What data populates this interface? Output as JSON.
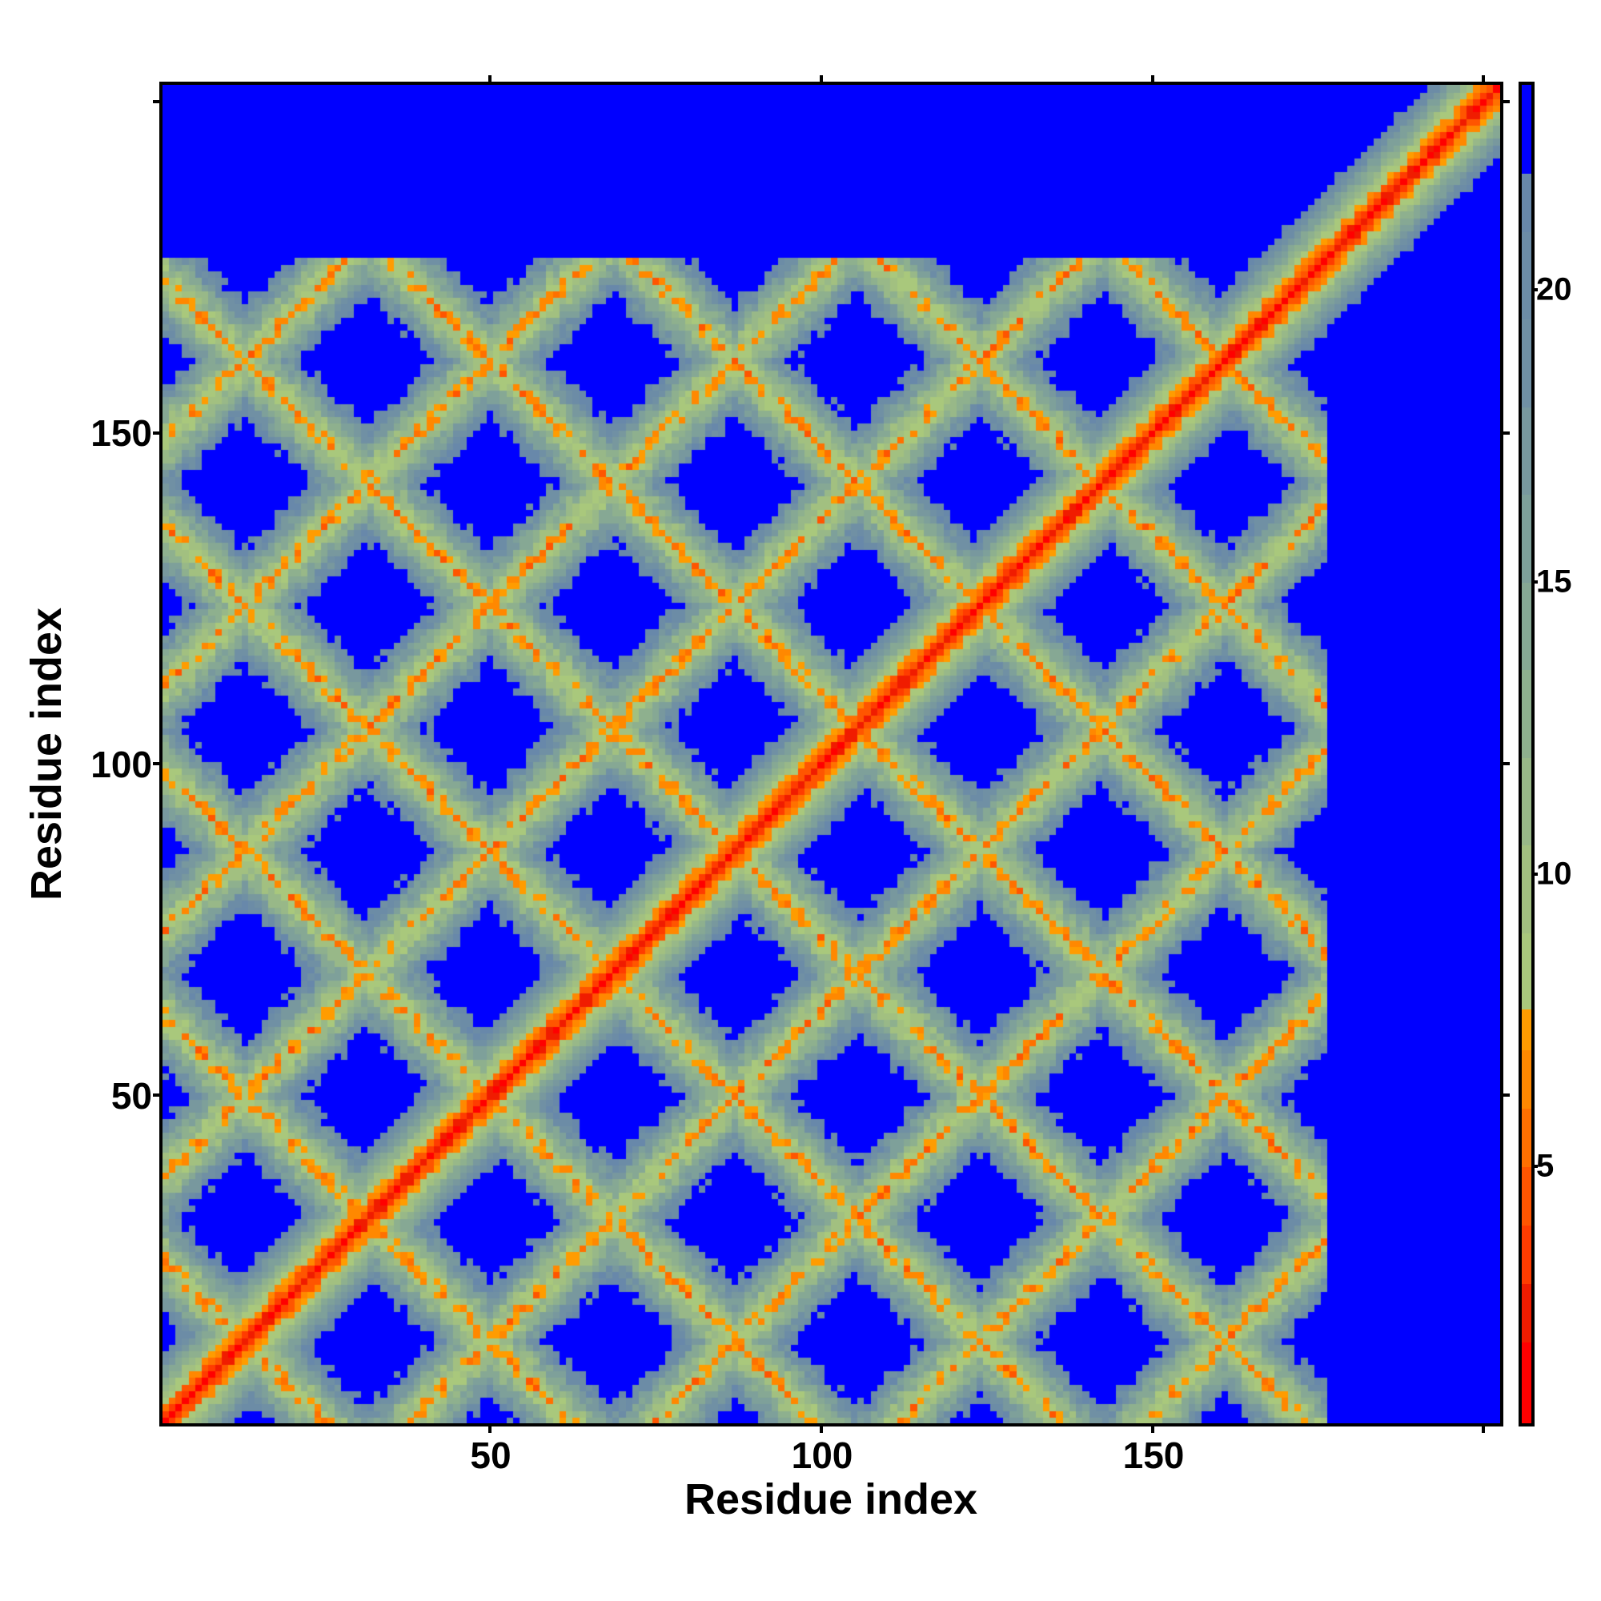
{
  "chart_data": {
    "type": "heatmap",
    "title": "",
    "xlabel": "Residue index",
    "ylabel": "Residue index",
    "n_residues": 202,
    "xlim": [
      0.5,
      202.5
    ],
    "ylim": [
      0.5,
      202.5
    ],
    "x_ticks": [
      50,
      100,
      150,
      200
    ],
    "x_tick_labels": [
      "50",
      "100",
      "150",
      ""
    ],
    "y_ticks": [
      50,
      100,
      150,
      200
    ],
    "y_tick_labels": [
      "50",
      "100",
      "150",
      ""
    ],
    "colorbar": {
      "range": [
        0.6,
        23.5
      ],
      "ticks": [
        5,
        10,
        15,
        20
      ],
      "tick_labels": [
        "5",
        "10",
        "15",
        "20"
      ],
      "bins": [
        {
          "from": 0.6,
          "to": 2,
          "color": "#ff0000"
        },
        {
          "from": 2,
          "to": 3,
          "color": "#f01c00"
        },
        {
          "from": 3,
          "to": 4,
          "color": "#ff3c00"
        },
        {
          "from": 4,
          "to": 5,
          "color": "#ff5500"
        },
        {
          "from": 5,
          "to": 6,
          "color": "#ff7000"
        },
        {
          "from": 6,
          "to": 7,
          "color": "#ff8800"
        },
        {
          "from": 7,
          "to": 7.7,
          "color": "#ff9c00"
        },
        {
          "from": 7.7,
          "to": 9,
          "color": "#a9c87c"
        },
        {
          "from": 9,
          "to": 10.5,
          "color": "#a2c080"
        },
        {
          "from": 10.5,
          "to": 12,
          "color": "#98b888"
        },
        {
          "from": 12,
          "to": 13.5,
          "color": "#8eb08e"
        },
        {
          "from": 13.5,
          "to": 15,
          "color": "#86a894"
        },
        {
          "from": 15,
          "to": 16.5,
          "color": "#7ea09a"
        },
        {
          "from": 16.5,
          "to": 18,
          "color": "#78989e"
        },
        {
          "from": 18,
          "to": 19.5,
          "color": "#7090a4"
        },
        {
          "from": 19.5,
          "to": 21,
          "color": "#6c8ca6"
        },
        {
          "from": 21,
          "to": 22,
          "color": "#6888aa"
        },
        {
          "from": 22,
          "to": 23.5,
          "color": "#0000ff"
        }
      ]
    },
    "pattern": {
      "structured_region_max_residue": 176,
      "band_period_residues": 37
    }
  }
}
